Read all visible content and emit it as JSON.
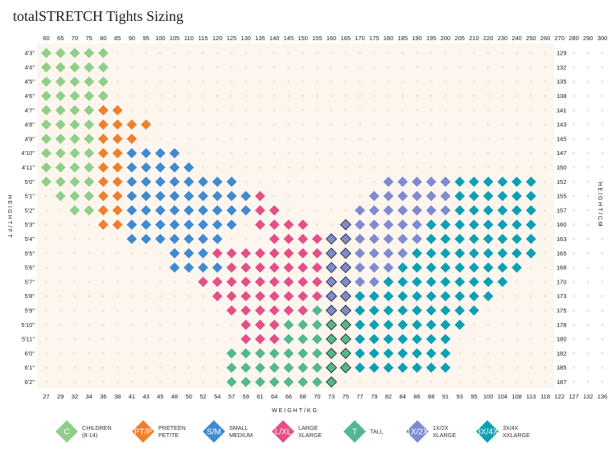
{
  "title": "totalSTRETCH Tights Sizing",
  "chart_data": {
    "type": "scatter",
    "title": "totalSTRETCH Tights Sizing",
    "x_top_ticks": [
      "60",
      "65",
      "70",
      "75",
      "80",
      "85",
      "90",
      "95",
      "100",
      "105",
      "110",
      "115",
      "120",
      "125",
      "130",
      "135",
      "140",
      "145",
      "150",
      "155",
      "160",
      "165",
      "170",
      "175",
      "180",
      "185",
      "190",
      "195",
      "200",
      "205",
      "210",
      "220",
      "230",
      "240",
      "250",
      "260",
      "270",
      "280",
      "290",
      "300"
    ],
    "x_bottom_ticks": [
      "27",
      "29",
      "32",
      "34",
      "36",
      "38",
      "41",
      "43",
      "45",
      "48",
      "50",
      "52",
      "54",
      "57",
      "59",
      "61",
      "64",
      "66",
      "68",
      "70",
      "73",
      "75",
      "77",
      "79",
      "82",
      "84",
      "86",
      "88",
      "91",
      "93",
      "95",
      "100",
      "104",
      "108",
      "113",
      "118",
      "122",
      "127",
      "132",
      "136"
    ],
    "y_left_ticks": [
      "4'3\"",
      "4'4\"",
      "4'5\"",
      "4'6\"",
      "4'7\"",
      "4'8\"",
      "4'9\"",
      "4'10\"",
      "4'11\"",
      "5'0\"",
      "5'1\"",
      "5'2\"",
      "5'3\"",
      "5'4\"",
      "5'5\"",
      "5'6\"",
      "5'7\"",
      "5'8\"",
      "5'9\"",
      "5'10\"",
      "5'11\"",
      "6'0\"",
      "6'1\"",
      "6'2\""
    ],
    "y_right_ticks": [
      "129",
      "132",
      "135",
      "138",
      "141",
      "143",
      "145",
      "147",
      "150",
      "152",
      "155",
      "157",
      "160",
      "163",
      "165",
      "168",
      "170",
      "173",
      "175",
      "178",
      "180",
      "182",
      "185",
      "187"
    ],
    "xlabel": "WEIGHT/KG",
    "ylabel_left": "HEIGHT/FT",
    "ylabel_right": "HEIGHT/CM",
    "grid": true,
    "legend": "bottom",
    "series": [
      {
        "code": "C",
        "name": "CHILDREN",
        "sub": "(8-14)",
        "color": "#8fcf8a",
        "rows": [
          [
            0,
            0,
            4
          ],
          [
            1,
            0,
            4
          ],
          [
            2,
            0,
            4
          ],
          [
            3,
            0,
            4
          ],
          [
            4,
            0,
            3
          ],
          [
            5,
            0,
            3
          ],
          [
            6,
            0,
            3
          ],
          [
            7,
            0,
            3
          ],
          [
            8,
            0,
            3
          ],
          [
            9,
            0,
            3
          ],
          [
            10,
            1,
            3
          ],
          [
            11,
            2,
            3
          ]
        ]
      },
      {
        "code": "PT/P",
        "name": "PRETEEN",
        "sub": "PETITE",
        "color": "#f07f2c",
        "rows": [
          [
            4,
            4,
            5
          ],
          [
            5,
            4,
            7
          ],
          [
            6,
            4,
            6
          ],
          [
            7,
            4,
            5
          ],
          [
            8,
            4,
            5
          ],
          [
            9,
            4,
            5
          ],
          [
            10,
            4,
            5
          ],
          [
            11,
            4,
            5
          ],
          [
            12,
            4,
            5
          ]
        ]
      },
      {
        "code": "S/M",
        "name": "SMALL",
        "sub": "MEDIUM",
        "color": "#3f8ad1",
        "rows": [
          [
            7,
            6,
            9
          ],
          [
            8,
            6,
            10
          ],
          [
            9,
            6,
            13
          ],
          [
            10,
            6,
            14
          ],
          [
            11,
            6,
            14
          ],
          [
            12,
            6,
            13
          ],
          [
            13,
            6,
            12
          ],
          [
            14,
            9,
            11
          ],
          [
            15,
            9,
            12
          ]
        ]
      },
      {
        "code": "L/XL",
        "name": "LARGE",
        "sub": "XLARGE",
        "color": "#e34f86",
        "rows": [
          [
            10,
            15,
            15
          ],
          [
            11,
            15,
            16
          ],
          [
            12,
            15,
            18
          ],
          [
            13,
            16,
            19
          ],
          [
            14,
            12,
            19
          ],
          [
            15,
            13,
            19
          ],
          [
            16,
            11,
            19
          ],
          [
            17,
            12,
            19
          ],
          [
            18,
            13,
            18
          ],
          [
            19,
            14,
            16
          ],
          [
            20,
            14,
            16
          ]
        ]
      },
      {
        "code": "T",
        "name": "TALL",
        "sub": "",
        "color": "#54b88e",
        "rows": [
          [
            17,
            20,
            20
          ],
          [
            18,
            19,
            21
          ],
          [
            19,
            17,
            21
          ],
          [
            20,
            17,
            21
          ],
          [
            21,
            13,
            21
          ],
          [
            22,
            13,
            21
          ],
          [
            23,
            13,
            20
          ]
        ]
      },
      {
        "code": "1X/2X",
        "name": "1X/2X",
        "sub": "XLARGE",
        "color": "#7f8ad0",
        "rows": [
          [
            9,
            24,
            28
          ],
          [
            10,
            23,
            28
          ],
          [
            11,
            22,
            28
          ],
          [
            12,
            21,
            28
          ],
          [
            13,
            20,
            28
          ],
          [
            14,
            20,
            26
          ],
          [
            15,
            20,
            25
          ],
          [
            16,
            20,
            24
          ],
          [
            17,
            20,
            23
          ],
          [
            18,
            20,
            22
          ]
        ]
      },
      {
        "code": "3X/4X",
        "name": "3X/4X",
        "sub": "XXLARGE",
        "color": "#0da0b4",
        "rows": [
          [
            9,
            29,
            34
          ],
          [
            10,
            29,
            34
          ],
          [
            11,
            29,
            34
          ],
          [
            12,
            27,
            34
          ],
          [
            13,
            27,
            34
          ],
          [
            14,
            26,
            34
          ],
          [
            15,
            25,
            33
          ],
          [
            16,
            24,
            32
          ],
          [
            17,
            22,
            31
          ],
          [
            18,
            22,
            30
          ],
          [
            19,
            22,
            29
          ],
          [
            20,
            22,
            28
          ],
          [
            21,
            22,
            28
          ],
          [
            22,
            22,
            28
          ]
        ]
      }
    ],
    "outlined_cells": [
      [
        12,
        20
      ],
      [
        12,
        21
      ],
      [
        13,
        20
      ],
      [
        13,
        21
      ],
      [
        14,
        20
      ],
      [
        14,
        21
      ],
      [
        15,
        20
      ],
      [
        15,
        21
      ],
      [
        16,
        20
      ],
      [
        16,
        21
      ],
      [
        17,
        20
      ],
      [
        17,
        21
      ],
      [
        18,
        20
      ],
      [
        18,
        21
      ],
      [
        19,
        20
      ],
      [
        19,
        21
      ],
      [
        20,
        20
      ],
      [
        20,
        21
      ],
      [
        21,
        20
      ],
      [
        21,
        21
      ],
      [
        22,
        20
      ],
      [
        22,
        21
      ],
      [
        23,
        20
      ],
      [
        23,
        21
      ]
    ]
  },
  "legend": [
    {
      "code": "C",
      "label1": "CHILDREN",
      "label2": "(8-14)",
      "color": "#8fcf8a"
    },
    {
      "code": "PT/P",
      "label1": "PRETEEN",
      "label2": "PETITE",
      "color": "#f07f2c"
    },
    {
      "code": "S/M",
      "label1": "SMALL",
      "label2": "MEDIUM",
      "color": "#3f8ad1"
    },
    {
      "code": "L/XL",
      "label1": "LARGE",
      "label2": "XLARGE",
      "color": "#e34f86"
    },
    {
      "code": "T",
      "label1": "TALL",
      "label2": "",
      "color": "#54b88e"
    },
    {
      "code": "1X/2X",
      "label1": "1X/2X",
      "label2": "XLARGE",
      "color": "#7f8ad0"
    },
    {
      "code": "3X/4X",
      "label1": "3X/4X",
      "label2": "XXLARGE",
      "color": "#0da0b4"
    }
  ],
  "colors": {
    "background": "#fdf6ee",
    "grid_dot": "#f1e5d4",
    "cell_border": "#2a2a2a"
  }
}
